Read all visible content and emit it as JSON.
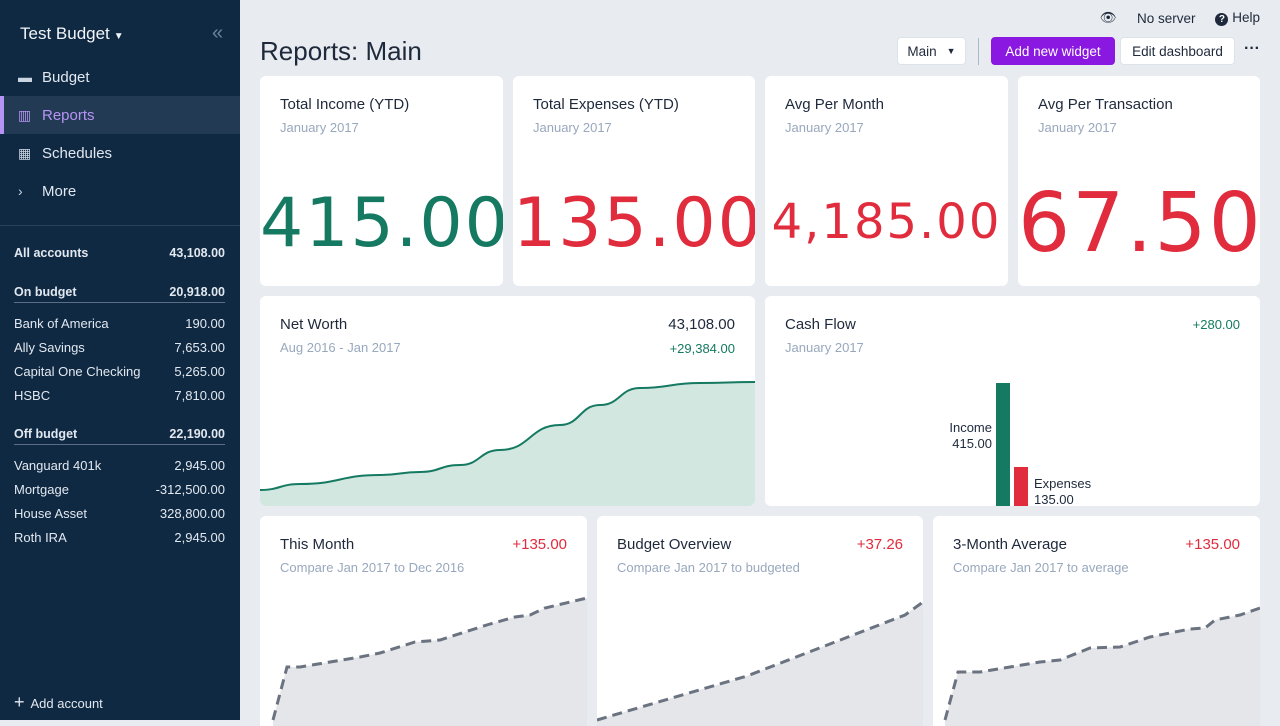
{
  "sidebar": {
    "budget_name": "Test Budget",
    "nav": [
      {
        "label": "Budget",
        "icon": "wallet-icon"
      },
      {
        "label": "Reports",
        "icon": "chart-icon"
      },
      {
        "label": "Schedules",
        "icon": "calendar-icon"
      },
      {
        "label": "More",
        "icon": "chevron-right-icon"
      }
    ],
    "all_accounts": {
      "label": "All accounts",
      "value": "43,108.00"
    },
    "on_budget": {
      "label": "On budget",
      "value": "20,918.00",
      "accounts": [
        {
          "name": "Bank of America",
          "value": "190.00"
        },
        {
          "name": "Ally Savings",
          "value": "7,653.00"
        },
        {
          "name": "Capital One Checking",
          "value": "5,265.00"
        },
        {
          "name": "HSBC",
          "value": "7,810.00"
        }
      ]
    },
    "off_budget": {
      "label": "Off budget",
      "value": "22,190.00",
      "accounts": [
        {
          "name": "Vanguard 401k",
          "value": "2,945.00"
        },
        {
          "name": "Mortgage",
          "value": "-312,500.00"
        },
        {
          "name": "House Asset",
          "value": "328,800.00"
        },
        {
          "name": "Roth IRA",
          "value": "2,945.00"
        }
      ]
    },
    "add_account": "Add account"
  },
  "topbar": {
    "server": "No server",
    "help": "Help"
  },
  "page": {
    "title": "Reports: Main",
    "dashboard_select": "Main",
    "add_widget": "Add new widget",
    "edit_dashboard": "Edit dashboard"
  },
  "colors": {
    "green": "#157a61",
    "red": "#e02c3c",
    "accent": "#8b18e0"
  },
  "summary": [
    {
      "title": "Total Income (YTD)",
      "sub": "January 2017",
      "value": "415.00",
      "color": "green"
    },
    {
      "title": "Total Expenses (YTD)",
      "sub": "January 2017",
      "value": "135.00",
      "color": "red"
    },
    {
      "title": "Avg Per Month",
      "sub": "January 2017",
      "value": "4,185.00",
      "color": "red"
    },
    {
      "title": "Avg Per Transaction",
      "sub": "January 2017",
      "value": "67.50",
      "color": "red"
    }
  ],
  "net_worth": {
    "title": "Net Worth",
    "sub": "Aug 2016 - Jan 2017",
    "value": "43,108.00",
    "change": "+29,384.00"
  },
  "cash_flow": {
    "title": "Cash Flow",
    "sub": "January 2017",
    "value": "+280.00",
    "chart_data": {
      "type": "bar",
      "categories": [
        "Income",
        "Expenses"
      ],
      "values": [
        415,
        135
      ],
      "labels": [
        "415.00",
        "135.00"
      ]
    }
  },
  "spending": [
    {
      "title": "This Month",
      "sub": "Compare Jan 2017 to Dec 2016",
      "value": "+135.00"
    },
    {
      "title": "Budget Overview",
      "sub": "Compare Jan 2017 to budgeted",
      "value": "+37.26"
    },
    {
      "title": "3-Month Average",
      "sub": "Compare Jan 2017 to average",
      "value": "+135.00"
    }
  ]
}
